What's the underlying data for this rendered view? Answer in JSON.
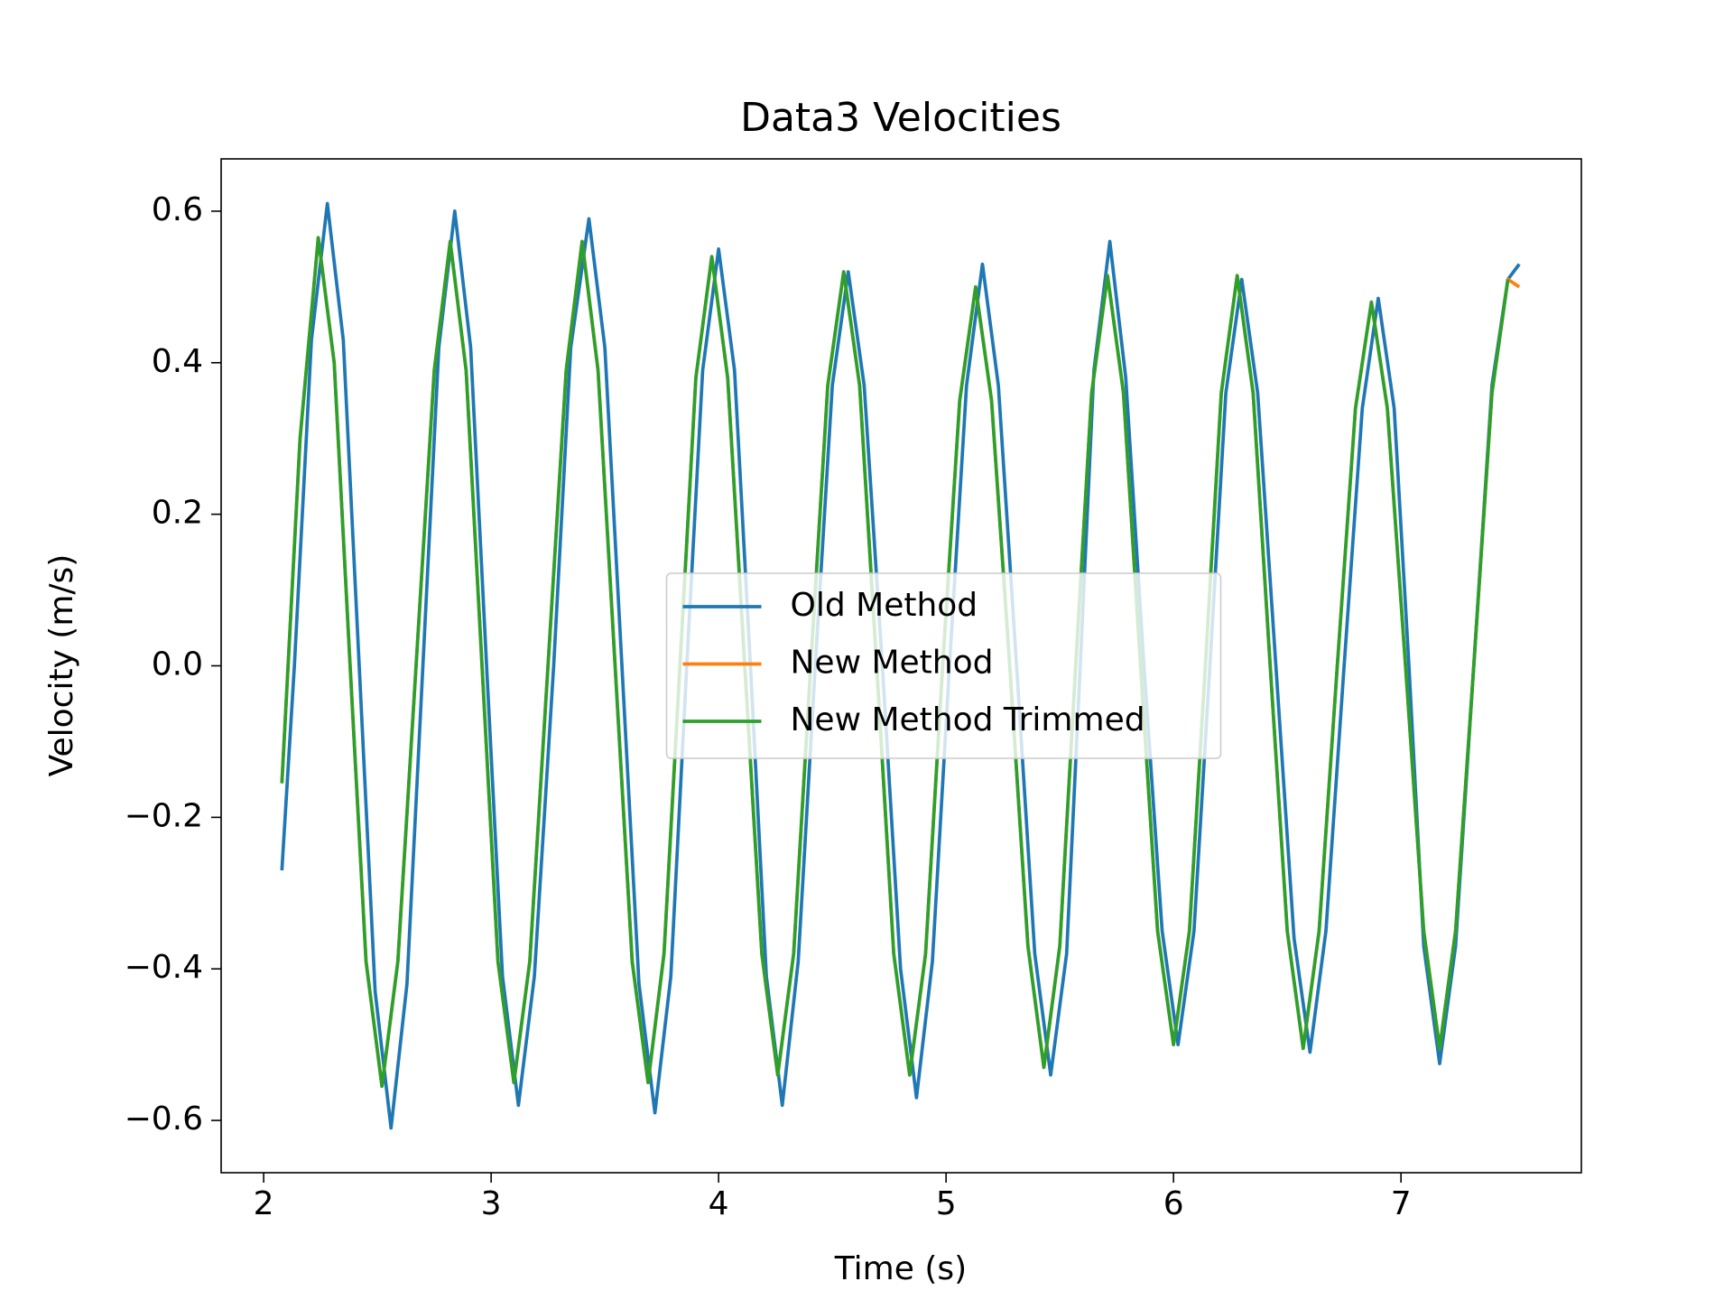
{
  "chart_data": {
    "type": "line",
    "title": "Data3 Velocities",
    "x_label": "Time (s)",
    "y_label": "Velocity (m/s)",
    "xlim": [
      1.813,
      7.793
    ],
    "ylim": [
      -0.669,
      0.669
    ],
    "xticks": [
      2,
      3,
      4,
      5,
      6,
      7
    ],
    "yticks": [
      {
        "value": -0.6,
        "label": "−0.6"
      },
      {
        "value": -0.4,
        "label": "−0.4"
      },
      {
        "value": -0.2,
        "label": "−0.2"
      },
      {
        "value": 0,
        "label": "0.0"
      },
      0.2,
      0.4,
      0.6
    ],
    "legend": "center",
    "series": [
      {
        "name": "Old Method",
        "color": "#1f77b4",
        "x": [
          2.08,
          2.135,
          2.21,
          2.28,
          2.35,
          2.42,
          2.49,
          2.56,
          2.63,
          2.7,
          2.77,
          2.84,
          2.91,
          2.98,
          3.05,
          3.12,
          3.19,
          3.275,
          3.35,
          3.43,
          3.5,
          3.575,
          3.65,
          3.72,
          3.79,
          3.86,
          3.93,
          4.0,
          4.07,
          4.14,
          4.21,
          4.28,
          4.35,
          4.425,
          4.5,
          4.57,
          4.64,
          4.72,
          4.8,
          4.87,
          4.94,
          5.015,
          5.09,
          5.16,
          5.23,
          5.31,
          5.39,
          5.46,
          5.53,
          5.59,
          5.65,
          5.72,
          5.79,
          5.87,
          5.95,
          6.02,
          6.09,
          6.16,
          6.23,
          6.3,
          6.37,
          6.45,
          6.53,
          6.6,
          6.67,
          6.75,
          6.83,
          6.9,
          6.97,
          7.035,
          7.1,
          7.17,
          7.24,
          7.32,
          7.4,
          7.47,
          7.52
        ],
        "values": [
          -0.27,
          0,
          0.43,
          0.61,
          0.43,
          0,
          -0.43,
          -0.61,
          -0.42,
          0,
          0.42,
          0.6,
          0.42,
          0,
          -0.41,
          -0.58,
          -0.41,
          0,
          0.42,
          0.59,
          0.42,
          0,
          -0.42,
          -0.59,
          -0.41,
          0,
          0.39,
          0.55,
          0.39,
          0,
          -0.41,
          -0.58,
          -0.39,
          0,
          0.37,
          0.52,
          0.37,
          0,
          -0.4,
          -0.57,
          -0.39,
          0,
          0.37,
          0.53,
          0.37,
          0,
          -0.38,
          -0.54,
          -0.38,
          0,
          0.39,
          0.56,
          0.38,
          0,
          -0.35,
          -0.5,
          -0.35,
          0,
          0.36,
          0.51,
          0.36,
          0,
          -0.36,
          -0.51,
          -0.35,
          0,
          0.34,
          0.485,
          0.34,
          0,
          -0.37,
          -0.525,
          -0.37,
          0,
          0.37,
          0.51,
          0.53
        ]
      },
      {
        "name": "New Method",
        "color": "#ff7f0e",
        "x": [
          2.08,
          2.16,
          2.24,
          2.31,
          2.38,
          2.45,
          2.52,
          2.59,
          2.67,
          2.75,
          2.82,
          2.89,
          2.96,
          3.03,
          3.1,
          3.17,
          3.25,
          3.33,
          3.4,
          3.47,
          3.545,
          3.62,
          3.69,
          3.76,
          3.83,
          3.9,
          3.97,
          4.04,
          4.115,
          4.19,
          4.26,
          4.33,
          4.405,
          4.48,
          4.55,
          4.62,
          4.695,
          4.77,
          4.84,
          4.91,
          4.985,
          5.06,
          5.13,
          5.2,
          5.28,
          5.36,
          5.43,
          5.5,
          5.57,
          5.64,
          5.71,
          5.78,
          5.855,
          5.93,
          6.0,
          6.07,
          6.14,
          6.21,
          6.28,
          6.35,
          6.425,
          6.5,
          6.57,
          6.64,
          6.72,
          6.8,
          6.87,
          6.94,
          7.02,
          7.1,
          7.17,
          7.24,
          7.32,
          7.4,
          7.47,
          7.52
        ],
        "values": [
          -0.155,
          0.3,
          0.565,
          0.4,
          0,
          -0.39,
          -0.555,
          -0.39,
          0,
          0.39,
          0.56,
          0.39,
          0,
          -0.39,
          -0.55,
          -0.39,
          0,
          0.39,
          0.56,
          0.39,
          0,
          -0.39,
          -0.55,
          -0.38,
          0,
          0.38,
          0.54,
          0.38,
          0,
          -0.38,
          -0.54,
          -0.38,
          0,
          0.37,
          0.52,
          0.37,
          0,
          -0.38,
          -0.54,
          -0.38,
          0,
          0.35,
          0.5,
          0.35,
          0,
          -0.37,
          -0.53,
          -0.37,
          0,
          0.36,
          0.515,
          0.36,
          0,
          -0.35,
          -0.5,
          -0.35,
          0,
          0.36,
          0.515,
          0.36,
          0,
          -0.35,
          -0.505,
          -0.35,
          0,
          0.34,
          0.48,
          0.34,
          0,
          -0.35,
          -0.505,
          -0.35,
          0,
          0.36,
          0.51,
          0.5
        ]
      },
      {
        "name": "New Method Trimmed",
        "color": "#2ca02c",
        "x": [
          2.08,
          2.16,
          2.24,
          2.31,
          2.38,
          2.45,
          2.52,
          2.59,
          2.67,
          2.75,
          2.82,
          2.89,
          2.96,
          3.03,
          3.1,
          3.17,
          3.25,
          3.33,
          3.4,
          3.47,
          3.545,
          3.62,
          3.69,
          3.76,
          3.83,
          3.9,
          3.97,
          4.04,
          4.115,
          4.19,
          4.26,
          4.33,
          4.405,
          4.48,
          4.55,
          4.62,
          4.695,
          4.77,
          4.84,
          4.91,
          4.985,
          5.06,
          5.13,
          5.2,
          5.28,
          5.36,
          5.43,
          5.5,
          5.57,
          5.64,
          5.71,
          5.78,
          5.855,
          5.93,
          6.0,
          6.07,
          6.14,
          6.21,
          6.28,
          6.35,
          6.425,
          6.5,
          6.57,
          6.64,
          6.72,
          6.8,
          6.87,
          6.94,
          7.02,
          7.1,
          7.17,
          7.24,
          7.32,
          7.4,
          7.47
        ],
        "values": [
          -0.155,
          0.3,
          0.565,
          0.4,
          0,
          -0.39,
          -0.555,
          -0.39,
          0,
          0.39,
          0.56,
          0.39,
          0,
          -0.39,
          -0.55,
          -0.39,
          0,
          0.39,
          0.56,
          0.39,
          0,
          -0.39,
          -0.55,
          -0.38,
          0,
          0.38,
          0.54,
          0.38,
          0,
          -0.38,
          -0.54,
          -0.38,
          0,
          0.37,
          0.52,
          0.37,
          0,
          -0.38,
          -0.54,
          -0.38,
          0,
          0.35,
          0.5,
          0.35,
          0,
          -0.37,
          -0.53,
          -0.37,
          0,
          0.36,
          0.515,
          0.36,
          0,
          -0.35,
          -0.5,
          -0.35,
          0,
          0.36,
          0.515,
          0.36,
          0,
          -0.35,
          -0.505,
          -0.35,
          0,
          0.34,
          0.48,
          0.34,
          0,
          -0.35,
          -0.505,
          -0.35,
          0,
          0.36,
          0.51
        ]
      }
    ]
  }
}
